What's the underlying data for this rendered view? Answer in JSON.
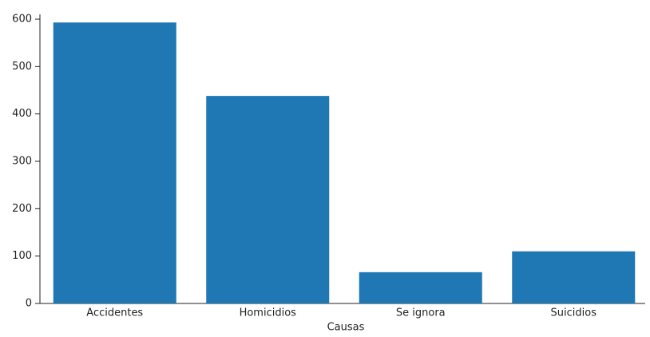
{
  "chart_data": {
    "type": "bar",
    "x_label": "Causas",
    "categories": [
      "Accidentes",
      "Homicidios",
      "Se ignora",
      "Suicidios"
    ],
    "values": [
      593,
      438,
      66,
      110
    ],
    "color": "#1f77b4",
    "ylim": [
      0,
      600
    ],
    "yticks": [
      0,
      100,
      200,
      300,
      400,
      500,
      600
    ],
    "grid": false
  }
}
